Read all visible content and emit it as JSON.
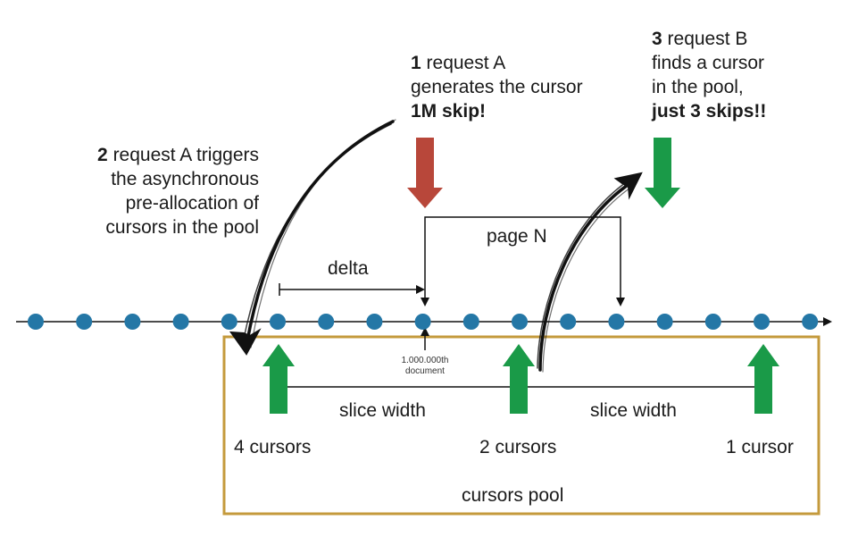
{
  "colors": {
    "dot": "#2477a6",
    "red_arrow": "#b8473a",
    "green_arrow": "#1a9a48",
    "pool_border": "#c49a3c",
    "line": "#111111"
  },
  "annotations": {
    "step1": {
      "num": "1",
      "line1": "request A",
      "line2": "generates the cursor",
      "line3": "1M skip!"
    },
    "step2": {
      "num": "2",
      "line1": "request A triggers",
      "line2": "the asynchronous",
      "line3": "pre-allocation of",
      "line4": "cursors in the pool"
    },
    "step3": {
      "num": "3",
      "line1": "request B",
      "line2": "finds a cursor",
      "line3": "in the pool,",
      "line4": "just 3 skips!!"
    }
  },
  "labels": {
    "page": "page N",
    "delta": "delta",
    "target_doc_line1": "1.000.000th",
    "target_doc_line2": "document",
    "slice_width_1": "slice width",
    "slice_width_2": "slice width",
    "cursors_4": "4 cursors",
    "cursors_2": "2 cursors",
    "cursors_1": "1 cursor",
    "pool": "cursors pool"
  },
  "timeline": {
    "document_count": 17
  }
}
